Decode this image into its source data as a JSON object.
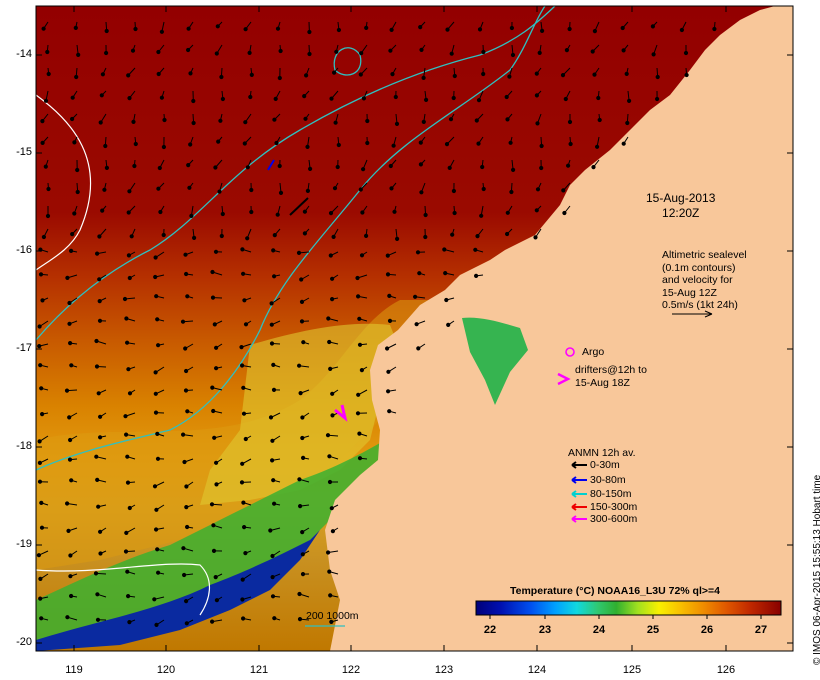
{
  "axes": {
    "lat_labels": [
      "-14",
      "-15",
      "-16",
      "-17",
      "-18",
      "-19",
      "-20"
    ],
    "lon_labels": [
      "119",
      "120",
      "121",
      "122",
      "123",
      "124",
      "125",
      "126"
    ]
  },
  "annotations": {
    "date": "15-Aug-2013",
    "time": "12:20Z",
    "altimetry": [
      "Altimetric sealevel",
      "(0.1m contours)",
      "and velocity for",
      "15-Aug 12Z",
      "0.5m/s (1kt 24h)"
    ],
    "argo_label": "Argo",
    "drifters": [
      "drifters@12h to",
      "15-Aug 18Z"
    ],
    "depth_contours": "200  1000m",
    "anmn_title": "ANMN 12h av.",
    "anmn_items": [
      {
        "label": "0-30m",
        "color": "#000000"
      },
      {
        "label": "30-80m",
        "color": "#0000ee"
      },
      {
        "label": "80-150m",
        "color": "#00d0d0"
      },
      {
        "label": "150-300m",
        "color": "#ee0000"
      },
      {
        "label": "300-600m",
        "color": "#ff00ff"
      }
    ]
  },
  "colorbar": {
    "title": "Temperature (°C) NOAA16_L3U 72% ql>=4",
    "ticks": [
      "22",
      "23",
      "24",
      "25",
      "26",
      "27"
    ],
    "colors": [
      "#00007a",
      "#0020c0",
      "#0070ff",
      "#00b8ff",
      "#20d8c0",
      "#40c060",
      "#30b030",
      "#a0e020",
      "#f8f000",
      "#f8c000",
      "#f09000",
      "#e06000",
      "#c83000",
      "#a01000",
      "#880000"
    ]
  },
  "credit": "© IMOS 06-Apr-2015 15:55:13 Hobart time",
  "colors": {
    "land": "#f8c79a",
    "warm": "#950000",
    "contour": "#2fc0c0",
    "isobath": "#ffffff"
  }
}
